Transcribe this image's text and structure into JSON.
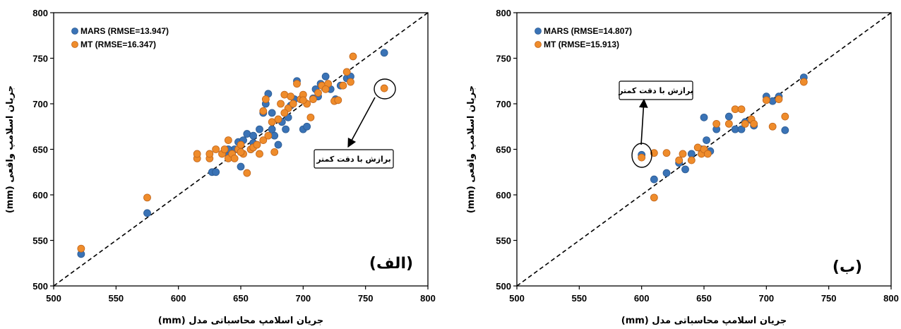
{
  "colors": {
    "mars": "#3a73b6",
    "mt": "#ef8c2b",
    "mt_stroke": "#c0641a",
    "mars_stroke": "#2a5a92"
  },
  "chart_data": [
    {
      "type": "scatter",
      "panel_label": "(الف)",
      "xlabel": "جریان اسلامپ محاسباتی مدل (mm)",
      "ylabel": "جریان اسلامپ واقعی (mm)",
      "xlim": [
        500,
        800
      ],
      "ylim": [
        500,
        800
      ],
      "x_ticks": [
        "500",
        "550",
        "600",
        "650",
        "700",
        "750",
        "800"
      ],
      "y_ticks": [
        "500",
        "550",
        "600",
        "650",
        "700",
        "750",
        "800"
      ],
      "grid": false,
      "legend_position": "top-left",
      "reference_line": "y=x",
      "annotation": {
        "text": "برازش با دقت کمتر",
        "target": [
          765,
          717
        ]
      },
      "series": [
        {
          "name": "MARS (RMSE=13.947)",
          "points": [
            [
              522,
              535
            ],
            [
              575,
              580
            ],
            [
              627,
              625
            ],
            [
              630,
              625
            ],
            [
              640,
              645
            ],
            [
              645,
              650
            ],
            [
              648,
              658
            ],
            [
              650,
              631
            ],
            [
              652,
              660
            ],
            [
              655,
              667
            ],
            [
              658,
              650
            ],
            [
              660,
              665
            ],
            [
              662,
              655
            ],
            [
              665,
              672
            ],
            [
              668,
              690
            ],
            [
              670,
              700
            ],
            [
              672,
              711
            ],
            [
              675,
              690
            ],
            [
              677,
              665
            ],
            [
              680,
              655
            ],
            [
              683,
              680
            ],
            [
              686,
              672
            ],
            [
              690,
              698
            ],
            [
              693,
              705
            ],
            [
              695,
              725
            ],
            [
              700,
              672
            ],
            [
              703,
              675
            ],
            [
              708,
              706
            ],
            [
              710,
              716
            ],
            [
              714,
              722
            ],
            [
              718,
              730
            ],
            [
              722,
              716
            ],
            [
              726,
              705
            ],
            [
              730,
              720
            ],
            [
              735,
              728
            ],
            [
              738,
              730
            ],
            [
              765,
              756
            ],
            [
              640,
              650
            ],
            [
              660,
              657
            ],
            [
              675,
              672
            ],
            [
              688,
              685
            ],
            [
              698,
              705
            ],
            [
              712,
              708
            ]
          ]
        },
        {
          "name": "MT (RMSE=16.347)",
          "points": [
            [
              522,
              541
            ],
            [
              575,
              597
            ],
            [
              615,
              640
            ],
            [
              615,
              645
            ],
            [
              625,
              640
            ],
            [
              625,
              645
            ],
            [
              630,
              650
            ],
            [
              635,
              645
            ],
            [
              637,
              650
            ],
            [
              640,
              660
            ],
            [
              640,
              640
            ],
            [
              643,
              645
            ],
            [
              645,
              640
            ],
            [
              648,
              650
            ],
            [
              650,
              655
            ],
            [
              652,
              645
            ],
            [
              655,
              624
            ],
            [
              658,
              650
            ],
            [
              660,
              652
            ],
            [
              663,
              655
            ],
            [
              665,
              645
            ],
            [
              668,
              660
            ],
            [
              670,
              705
            ],
            [
              672,
              665
            ],
            [
              675,
              680
            ],
            [
              677,
              647
            ],
            [
              680,
              683
            ],
            [
              682,
              700
            ],
            [
              685,
              710
            ],
            [
              688,
              695
            ],
            [
              690,
              708
            ],
            [
              692,
              700
            ],
            [
              695,
              722
            ],
            [
              698,
              705
            ],
            [
              700,
              710
            ],
            [
              703,
              700
            ],
            [
              706,
              685
            ],
            [
              708,
              705
            ],
            [
              712,
              712
            ],
            [
              715,
              720
            ],
            [
              720,
              722
            ],
            [
              725,
              703
            ],
            [
              728,
              704
            ],
            [
              732,
              720
            ],
            [
              735,
              735
            ],
            [
              738,
              724
            ],
            [
              740,
              752
            ],
            [
              765,
              717
            ],
            [
              650,
              647
            ],
            [
              668,
              692
            ],
            [
              685,
              690
            ],
            [
              700,
              704
            ],
            [
              718,
              716
            ]
          ]
        }
      ]
    },
    {
      "type": "scatter",
      "panel_label": "(ب)",
      "xlabel": "جریان اسلامپ محاسباتی مدل (mm)",
      "ylabel": "جریان اسلامپ واقعی (mm)",
      "xlim": [
        500,
        800
      ],
      "ylim": [
        500,
        800
      ],
      "x_ticks": [
        "500",
        "550",
        "600",
        "650",
        "700",
        "750",
        "800"
      ],
      "y_ticks": [
        "500",
        "550",
        "600",
        "650",
        "700",
        "750",
        "800"
      ],
      "grid": false,
      "legend_position": "top-left",
      "reference_line": "y=x",
      "annotation": {
        "text": "برازش با دقت کمتر",
        "target": [
          600,
          643
        ]
      },
      "series": [
        {
          "name": "MARS (RMSE=14.807)",
          "points": [
            [
              600,
              644
            ],
            [
              610,
              617
            ],
            [
              620,
              624
            ],
            [
              630,
              635
            ],
            [
              635,
              628
            ],
            [
              640,
              645
            ],
            [
              648,
              650
            ],
            [
              650,
              685
            ],
            [
              652,
              660
            ],
            [
              655,
              648
            ],
            [
              660,
              672
            ],
            [
              670,
              686
            ],
            [
              675,
              672
            ],
            [
              680,
              672
            ],
            [
              683,
              680
            ],
            [
              688,
              682
            ],
            [
              690,
              676
            ],
            [
              700,
              708
            ],
            [
              705,
              703
            ],
            [
              710,
              708
            ],
            [
              715,
              671
            ],
            [
              730,
              729
            ]
          ]
        },
        {
          "name": "MT (RMSE=15.913)",
          "points": [
            [
              600,
              641
            ],
            [
              610,
              646
            ],
            [
              610,
              597
            ],
            [
              620,
              646
            ],
            [
              630,
              638
            ],
            [
              633,
              645
            ],
            [
              640,
              638
            ],
            [
              645,
              652
            ],
            [
              648,
              645
            ],
            [
              650,
              650
            ],
            [
              653,
              645
            ],
            [
              660,
              678
            ],
            [
              670,
              678
            ],
            [
              675,
              694
            ],
            [
              680,
              694
            ],
            [
              683,
              678
            ],
            [
              688,
              683
            ],
            [
              690,
              678
            ],
            [
              700,
              704
            ],
            [
              705,
              675
            ],
            [
              710,
              705
            ],
            [
              715,
              686
            ],
            [
              730,
              724
            ]
          ]
        }
      ]
    }
  ]
}
